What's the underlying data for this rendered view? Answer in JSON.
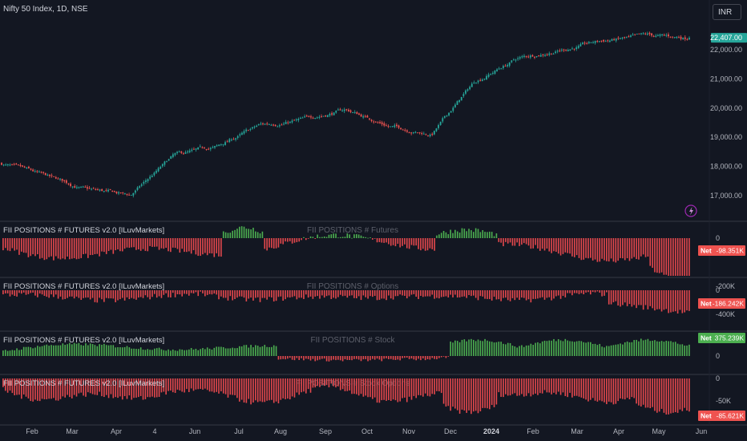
{
  "symbol": {
    "title": "Nifty 50 Index, 1D, NSE",
    "currency": "INR"
  },
  "price_axis": {
    "labels": [
      "22,000.00",
      "21,000.00",
      "20,000.00",
      "19,000.00",
      "18,000.00",
      "17,000.00"
    ],
    "values": [
      22000,
      21000,
      20000,
      19000,
      18000,
      17000
    ],
    "last_price_label": "22,407.00",
    "last_price_value": 22407
  },
  "colors": {
    "background": "#131722",
    "bull": "#26a69a",
    "bear": "#ef5350",
    "hist_green": "#4caf50",
    "hist_red": "#e5484d",
    "pane_divider": "#2a2e39",
    "axis_text": "#b2b5be"
  },
  "panes": [
    {
      "id": "futures",
      "title": "FII POSITIONS # FUTURES v2.0 [ILuvMarkets]",
      "watermark": "FII POSITIONS # Futures",
      "axis_labels": [
        "0",
        "-200K"
      ],
      "axis_values": [
        0,
        -200000
      ],
      "net_label": "Net",
      "net_value": "-98.351K",
      "net_color": "#ef5350"
    },
    {
      "id": "options",
      "title": "FII POSITIONS # FUTURES v2.0 [ILuvMarkets]",
      "watermark": "FII POSITIONS # Options",
      "axis_labels": [
        "0",
        "-400K"
      ],
      "axis_values": [
        0,
        -400000
      ],
      "net_label": "Net",
      "net_value": "-186.242K",
      "net_color": "#ef5350"
    },
    {
      "id": "stock",
      "title": "FII POSITIONS # FUTURES v2.0 [ILuvMarkets]",
      "watermark": "FII POSITIONS # Stock",
      "axis_labels": [
        "0"
      ],
      "axis_values": [
        0
      ],
      "net_label": "Net",
      "net_value": "375.239K",
      "net_color": "#4caf50"
    },
    {
      "id": "stock_options",
      "title": "FII POSITIONS # FUTURES v2.0 [ILuvMarkets]",
      "watermark": "FII POSITIONS # Stock Options",
      "axis_labels": [
        "0",
        "-50K"
      ],
      "axis_values": [
        0,
        -50000
      ],
      "net_label": "Net",
      "net_value": "-85.621K",
      "net_color": "#ef5350"
    }
  ],
  "time_axis": [
    "Feb",
    "Mar",
    "Apr",
    "4",
    "Jun",
    "Jul",
    "Aug",
    "Sep",
    "Oct",
    "Nov",
    "Dec",
    "2024",
    "Feb",
    "Mar",
    "Apr",
    "May",
    "Jun"
  ],
  "chart_data": {
    "type": "candlestick",
    "series": [
      {
        "name": "Nifty 50 Index, 1D, NSE"
      }
    ],
    "x_range": [
      "Jan 2023",
      "May 2024"
    ],
    "ylim": [
      16600,
      22700
    ],
    "x_axis_labels": [
      "Feb",
      "Mar",
      "Apr",
      "4",
      "Jun",
      "Jul",
      "Aug",
      "Sep",
      "Oct",
      "Nov",
      "Dec",
      "2024",
      "Feb",
      "Mar",
      "Apr",
      "May",
      "Jun"
    ],
    "close_path_by_month": {
      "months": [
        "Jan",
        "Feb",
        "Mar",
        "Apr",
        "May",
        "Jun",
        "Jul",
        "Aug",
        "Sep",
        "Oct",
        "Nov",
        "Dec",
        "Jan",
        "Feb",
        "Mar",
        "Apr",
        "May"
      ],
      "values": [
        18100,
        17650,
        17200,
        17000,
        18350,
        18650,
        19400,
        19600,
        19950,
        19400,
        19100,
        20900,
        21700,
        22000,
        22300,
        22450,
        22400
      ]
    },
    "last_value": 22407,
    "grid": false
  }
}
